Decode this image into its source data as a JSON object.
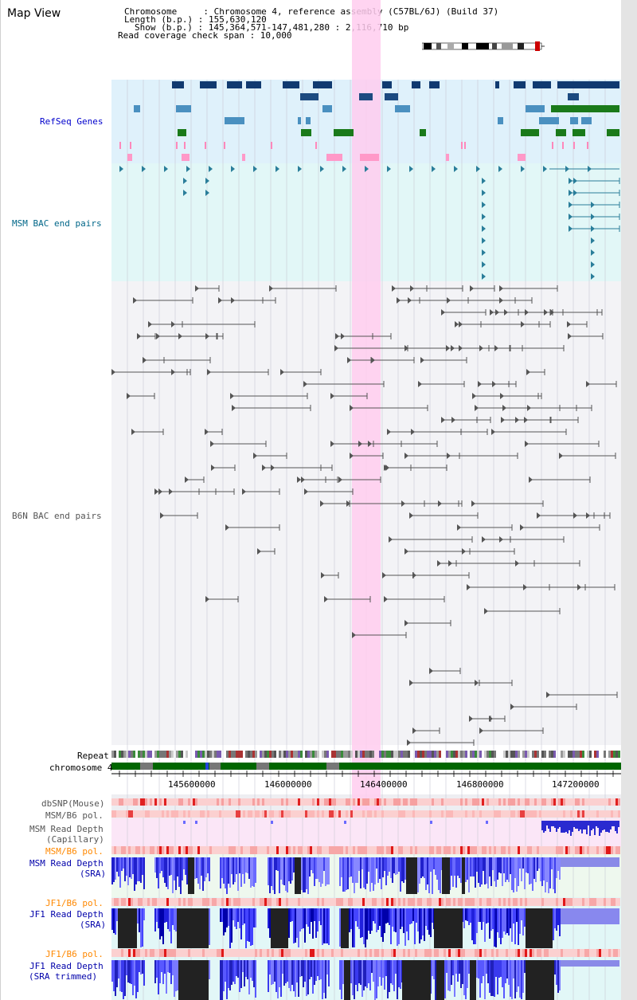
{
  "map_title": "Map View",
  "info": {
    "chromosome": "Chromosome     : Chromosome 4, reference assembly (C57BL/6J) (Build 37)",
    "length": "Length (b.p.) : 155,630,120",
    "show": "Show (b.p.) : 145,364,571-147,481,280 : 2,116,710 bp",
    "span": "Read coverage check span : 10,000"
  },
  "tracks": {
    "refseq": "RefSeq Genes",
    "msm_bac": "MSM BAC end pairs",
    "b6n_bac": "B6N BAC end pairs",
    "repeat": "Repeat",
    "chromosome": "chromosome 4",
    "dbsnp": "dbSNP(Mouse)",
    "msm_b6_pol_1": "MSM/B6 pol.",
    "msm_depth_cap_1": "MSM Read Depth",
    "msm_depth_cap_2": "(Capillary)",
    "msm_b6_pol_2": "MSM/B6 pol.",
    "msm_depth_sra_1": "MSM Read Depth",
    "msm_depth_sra_2": "(SRA)",
    "jf1_b6_pol_1": "JF1/B6 pol.",
    "jf1_depth_sra_1": "JF1 Read Depth",
    "jf1_depth_sra_2": "(SRA)",
    "jf1_b6_pol_2": "JF1/B6 pol.",
    "jf1_depth_trim_1": "JF1 Read Depth",
    "jf1_depth_trim_2": "(SRA trimmed)"
  },
  "axis": {
    "ticks": [
      "145600000",
      "146000000",
      "146400000",
      "146800000",
      "147200000"
    ]
  },
  "colors": {
    "refseq_label": "#0000cc",
    "msm_label": "#006688",
    "b6n_label": "#555555",
    "pol_label": "#ff8800",
    "depth_label": "#0000aa",
    "highlight": "#ffccee",
    "chromosome_bar": "#006600"
  }
}
